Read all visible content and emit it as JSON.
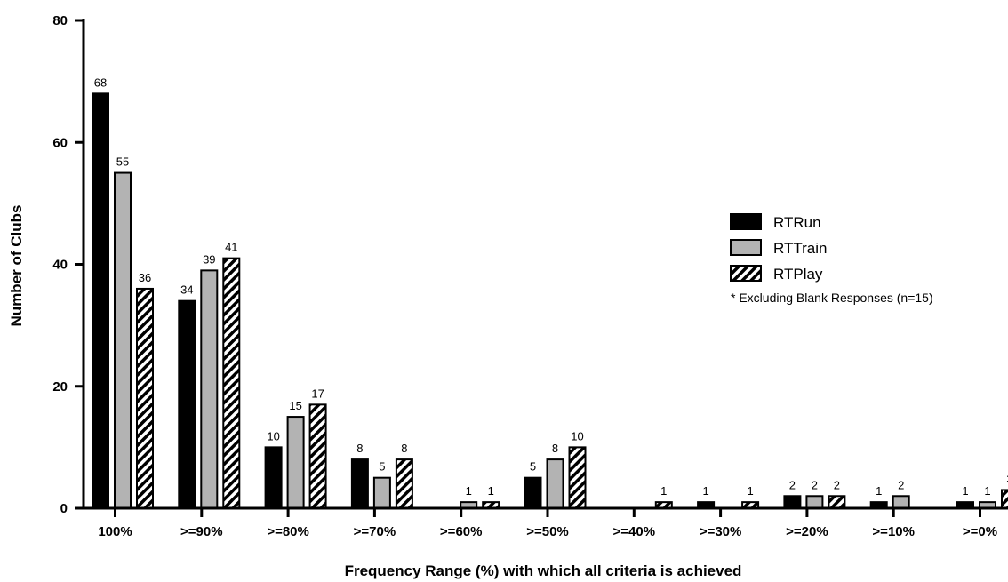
{
  "chart_data": {
    "type": "bar",
    "categories": [
      ">=100%",
      ">=90%",
      ">=80%",
      ">=70%",
      ">=60%",
      ">=50%",
      ">=40%",
      ">=30%",
      ">=20%",
      ">=10%",
      ">=0%"
    ],
    "category_labels": [
      "100%",
      ">=90%",
      ">=80%",
      ">=70%",
      ">=60%",
      ">=50%",
      ">=40%",
      ">=30%",
      ">=20%",
      ">=10%",
      ">=0%"
    ],
    "series": [
      {
        "name": "RTRun",
        "values": [
          68,
          34,
          10,
          8,
          null,
          5,
          null,
          1,
          2,
          1,
          1
        ],
        "fill": "#000000",
        "pattern": "solid"
      },
      {
        "name": "RTTrain",
        "values": [
          55,
          39,
          15,
          5,
          1,
          8,
          null,
          null,
          2,
          2,
          1
        ],
        "fill": "#b3b3b3",
        "pattern": "solid"
      },
      {
        "name": "RTPlay",
        "values": [
          36,
          41,
          17,
          8,
          1,
          10,
          1,
          1,
          2,
          null,
          3
        ],
        "fill": "#000000",
        "pattern": "diagonal-hatch"
      }
    ],
    "title": "",
    "xlabel": "Frequency Range (%) with which all criteria is achieved",
    "ylabel": "Number of Clubs",
    "ylim": [
      0,
      80
    ],
    "yticks": [
      "0",
      "20",
      "40",
      "60",
      "80"
    ],
    "grid": false,
    "legend_position": "right",
    "note": "* Excluding Blank Responses (n=15)"
  }
}
